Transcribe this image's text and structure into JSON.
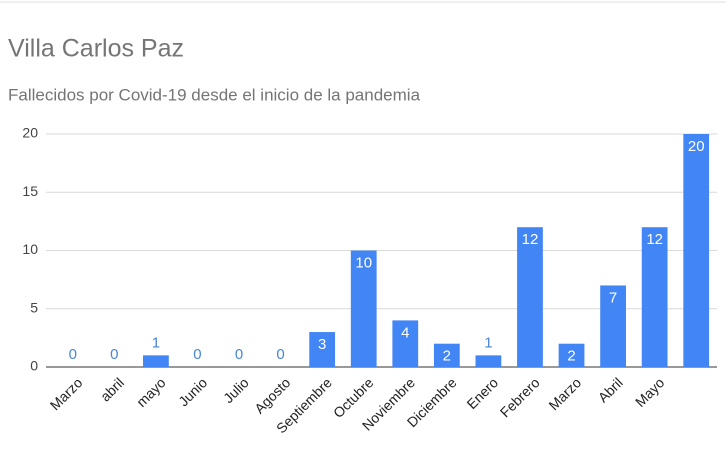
{
  "chart_data": {
    "type": "bar",
    "title": "Villa Carlos Paz",
    "subtitle": "Fallecidos por Covid-19 desde el inicio de la pandemia",
    "categories": [
      "Marzo",
      "abril",
      "mayo",
      "Junio",
      "Julio",
      "Agosto",
      "Septiembre",
      "Octubre",
      "Noviembre",
      "Diciembre",
      "Enero",
      "Febrero",
      "Marzo",
      "Abril",
      "Mayo",
      null
    ],
    "values": [
      0,
      0,
      1,
      0,
      0,
      0,
      3,
      10,
      4,
      2,
      1,
      12,
      2,
      7,
      12,
      20
    ],
    "color": "#4285f4",
    "ylim": [
      0,
      20
    ],
    "yticks": [
      0,
      5,
      10,
      15,
      20
    ],
    "grid": true
  }
}
